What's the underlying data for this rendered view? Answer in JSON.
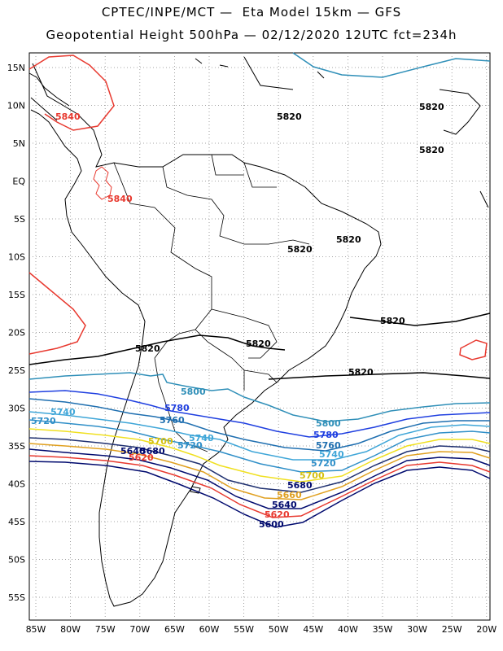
{
  "header": {
    "title_line1": "CPTEC/INPE/MCT —  Eta Model 15km — GFS",
    "title_line2": "Geopotential Height 500hPa — 02/12/2020 12UTC fct=234h"
  },
  "map": {
    "lon_labels": [
      "85W",
      "80W",
      "75W",
      "70W",
      "65W",
      "60W",
      "55W",
      "50W",
      "45W",
      "40W",
      "35W",
      "30W",
      "25W",
      "20W"
    ],
    "lat_labels": [
      "15N",
      "10N",
      "5N",
      "EQ",
      "5S",
      "10S",
      "15S",
      "20S",
      "25S",
      "30S",
      "35S",
      "40S",
      "45S",
      "50S",
      "55S"
    ],
    "grid": "dotted"
  },
  "contour_colors": {
    "5600": "#000a6e",
    "5620": "#e8392f",
    "5660": "#e0a020",
    "5680": "#f0e020",
    "5700": "#f0e020",
    "5720": "#2f8fc8",
    "5740": "#3fa6d8",
    "5760": "#1f6fb0",
    "5780": "#1f3fe0",
    "5800": "#2f8fb8",
    "5820": "#000000",
    "5840": "#e8392f"
  },
  "contour_labels": [
    {
      "text": "5840",
      "color": "#e8392f"
    },
    {
      "text": "5840",
      "color": "#e8392f"
    },
    {
      "text": "5820",
      "color": "#000000"
    },
    {
      "text": "5820",
      "color": "#000000"
    },
    {
      "text": "5820",
      "color": "#000000"
    },
    {
      "text": "5820",
      "color": "#000000"
    },
    {
      "text": "5820",
      "color": "#000000"
    },
    {
      "text": "5820",
      "color": "#000000"
    },
    {
      "text": "5820",
      "color": "#000000"
    },
    {
      "text": "5820",
      "color": "#000000"
    },
    {
      "text": "5820",
      "color": "#000000"
    },
    {
      "text": "5820",
      "color": "#000000"
    },
    {
      "text": "5800",
      "color": "#2f8fb8"
    },
    {
      "text": "5780",
      "color": "#1f3fe0"
    },
    {
      "text": "5760",
      "color": "#1f6fb0"
    },
    {
      "text": "5740",
      "color": "#3fa6d8"
    },
    {
      "text": "5720",
      "color": "#2f8fc8"
    },
    {
      "text": "5740",
      "color": "#3fa6d8"
    },
    {
      "text": "5720",
      "color": "#2f8fc8"
    },
    {
      "text": "5700",
      "color": "#d4c010"
    },
    {
      "text": "5640",
      "color": "#000a6e"
    },
    {
      "text": "5680",
      "color": "#000a6e"
    },
    {
      "text": "5620",
      "color": "#e8392f"
    },
    {
      "text": "5800",
      "color": "#2f8fb8"
    },
    {
      "text": "5780",
      "color": "#1f3fe0"
    },
    {
      "text": "5760",
      "color": "#1f6fb0"
    },
    {
      "text": "5740",
      "color": "#3fa6d8"
    },
    {
      "text": "5720",
      "color": "#2f8fc8"
    },
    {
      "text": "5700",
      "color": "#d4c010"
    },
    {
      "text": "5680",
      "color": "#000a6e"
    },
    {
      "text": "5660",
      "color": "#e0a020"
    },
    {
      "text": "5640",
      "color": "#000a6e"
    },
    {
      "text": "5620",
      "color": "#e8392f"
    },
    {
      "text": "5600",
      "color": "#000a6e"
    }
  ]
}
